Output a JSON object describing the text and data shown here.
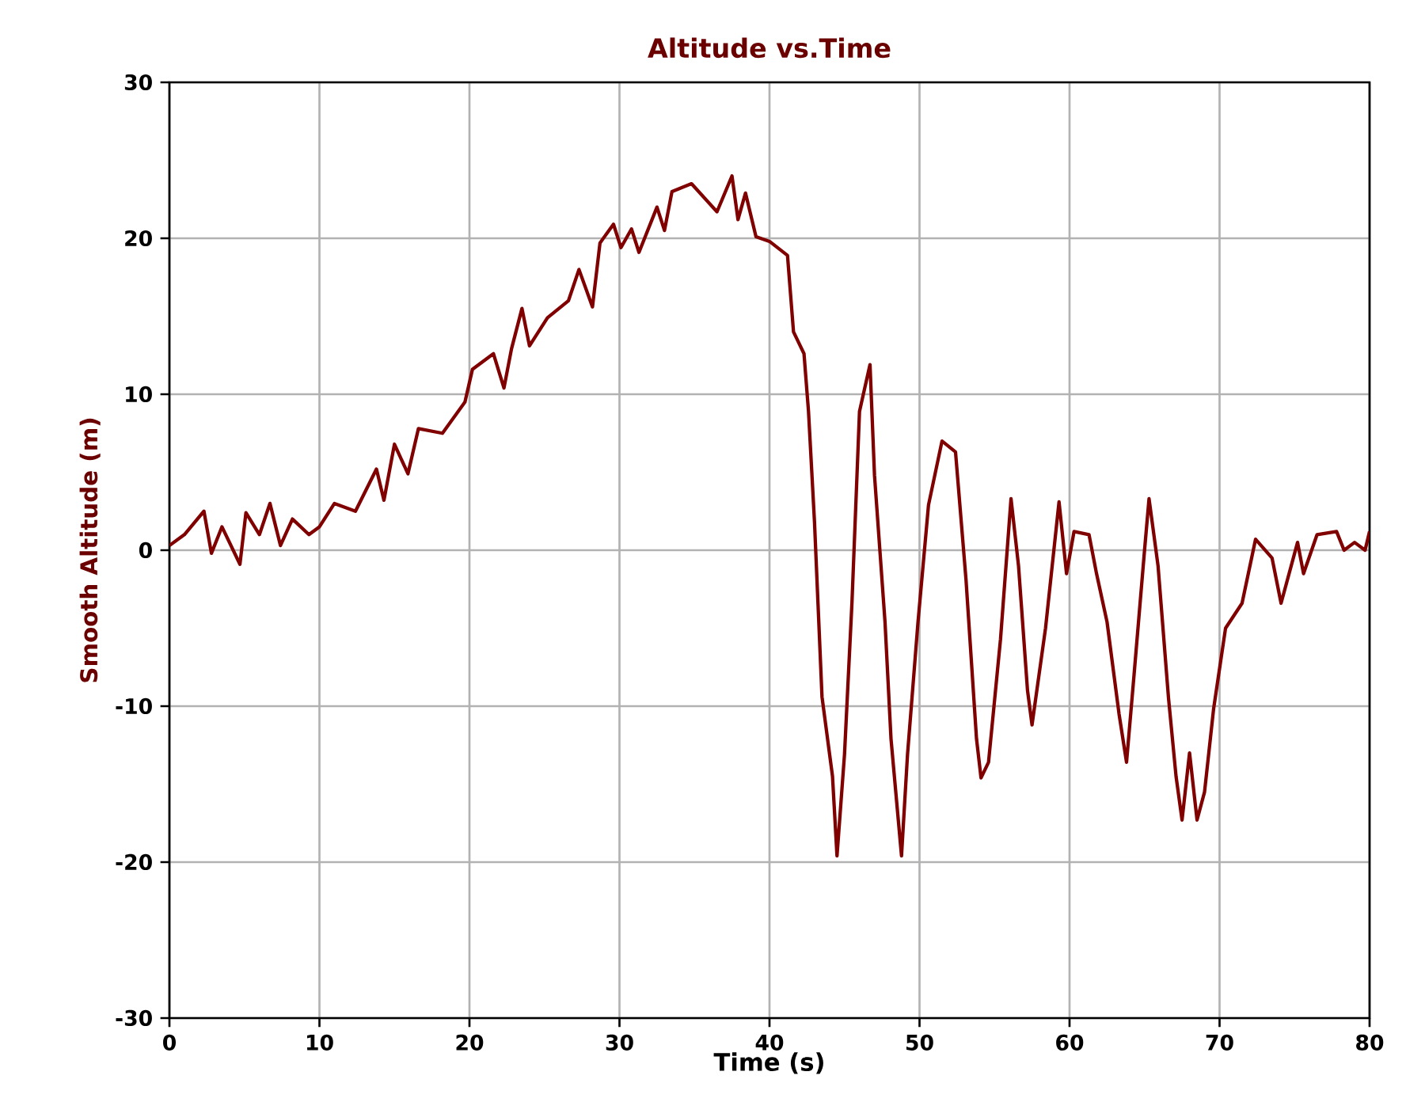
{
  "chart_data": {
    "type": "line",
    "title": "Altitude vs.Time",
    "xlabel": "Time (s)",
    "ylabel": "Smooth Altitude (m)",
    "xlim": [
      0,
      80
    ],
    "ylim": [
      -30,
      30
    ],
    "xticks": [
      0,
      10,
      20,
      30,
      40,
      50,
      60,
      70,
      80
    ],
    "yticks": [
      -30,
      -20,
      -10,
      0,
      10,
      20,
      30
    ],
    "grid": true,
    "marker": "none",
    "line_style": "solid",
    "series": [
      {
        "color": "#800000",
        "x": [
          0,
          1,
          2.3,
          2.8,
          3.5,
          4.7,
          5.1,
          6,
          6.7,
          7.4,
          8.2,
          9.3,
          10,
          11,
          12.4,
          13.8,
          14.3,
          15,
          15.9,
          16.6,
          18.2,
          19.7,
          20.2,
          21.6,
          22.3,
          22.8,
          23.5,
          24,
          25.2,
          26.6,
          27.3,
          28.2,
          28.7,
          29.6,
          30.1,
          30.8,
          31.3,
          32.5,
          33,
          33.5,
          34.8,
          36.5,
          37.5,
          37.9,
          38.4,
          39.1,
          40,
          41.2,
          41.6,
          42.3,
          42.6,
          43,
          43.5,
          44.2,
          44.5,
          45,
          45.5,
          46,
          46.7,
          47,
          47.7,
          48.1,
          48.8,
          49.2,
          49.9,
          50.6,
          51.5,
          52.4,
          53.1,
          53.8,
          54.1,
          54.6,
          55.4,
          56.1,
          56.6,
          57.2,
          57.5,
          58.4,
          59.3,
          59.8,
          60.3,
          61.3,
          61.8,
          62.5,
          63.3,
          63.8,
          64.3,
          65,
          65.3,
          65.9,
          66.6,
          67.1,
          67.5,
          68,
          68.5,
          69,
          69.6,
          70.4,
          71.5,
          72.4,
          73.5,
          74.1,
          75.2,
          75.6,
          76.5,
          77.8,
          78.3,
          79,
          79.7,
          80
        ],
        "values": [
          0.3,
          1,
          2.5,
          -0.2,
          1.5,
          -0.9,
          2.4,
          1,
          3,
          0.3,
          2,
          1,
          1.5,
          3,
          2.5,
          5.2,
          3.2,
          6.8,
          4.9,
          7.8,
          7.5,
          9.5,
          11.6,
          12.6,
          10.4,
          12.9,
          15.5,
          13.1,
          14.9,
          16,
          18,
          15.6,
          19.7,
          20.9,
          19.4,
          20.6,
          19.1,
          22,
          20.5,
          23,
          23.5,
          21.7,
          24,
          21.2,
          22.9,
          20.1,
          19.8,
          18.9,
          14,
          12.6,
          8.9,
          1.8,
          -9.4,
          -14.5,
          -19.6,
          -13.1,
          -3.3,
          8.9,
          11.9,
          4.8,
          -4.6,
          -12.1,
          -19.6,
          -13.1,
          -4.6,
          2.9,
          7,
          6.3,
          -1.9,
          -12.1,
          -14.6,
          -13.6,
          -5.7,
          3.3,
          -1,
          -9,
          -11.2,
          -5,
          3.1,
          -1.5,
          1.2,
          1,
          -1.5,
          -4.6,
          -10.5,
          -13.6,
          -8,
          0,
          3.3,
          -1,
          -9.5,
          -14.5,
          -17.3,
          -13,
          -17.3,
          -15.5,
          -10.2,
          -5,
          -3.4,
          0.7,
          -0.5,
          -3.4,
          0.5,
          -1.5,
          1,
          1.2,
          0,
          0.5,
          0,
          1.2
        ]
      }
    ]
  }
}
